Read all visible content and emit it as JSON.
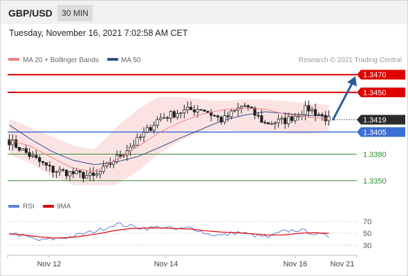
{
  "header": {
    "pair": "GBP/USD",
    "timeframe": "30 MIN",
    "datetime": "Tuesday, November 16, 2021 7:02:58 AM CET"
  },
  "legend": {
    "ma20_label": "MA 20 + Bollinger Bands",
    "ma20_color": "#f08080",
    "ma50_label": "MA 50",
    "ma50_color": "#2c4d8a",
    "copyright": "Research © 2021 Trading Central"
  },
  "rsi_legend": {
    "rsi_label": "RSI",
    "rsi_color": "#5b7fd6",
    "ma_label": "9MA",
    "ma_color": "#e00000"
  },
  "chart_data": [
    {
      "type": "candlestick",
      "x_categories": [
        "Nov 12",
        "Nov 14",
        "Nov 16",
        "Nov 21"
      ],
      "ylim": [
        1.3342,
        1.3478
      ],
      "current_price": 1.3419,
      "price_tags": [
        {
          "value": "1.3470",
          "style": "resistance"
        },
        {
          "value": "1.3450",
          "style": "resistance"
        },
        {
          "value": "1.3419",
          "style": "current"
        },
        {
          "value": "1.3405",
          "style": "pivot"
        },
        {
          "value": "1.3380",
          "style": "support"
        },
        {
          "value": "1.3350",
          "style": "support"
        }
      ],
      "levels": [
        {
          "value": 1.347,
          "kind": "resistance",
          "color": "#e00000"
        },
        {
          "value": 1.345,
          "kind": "resistance",
          "color": "#e00000"
        },
        {
          "value": 1.3405,
          "kind": "pivot",
          "color": "#3b6fd6"
        },
        {
          "value": 1.338,
          "kind": "support",
          "color": "#2e8b2e"
        },
        {
          "value": 1.335,
          "kind": "support",
          "color": "#2e8b2e"
        }
      ],
      "forecast_arrow": {
        "from": 1.3419,
        "to": 1.347,
        "color": "#2c5aa0"
      },
      "ma20_anchors": [
        1.3396,
        1.3389,
        1.3376,
        1.3364,
        1.336,
        1.3373,
        1.3388,
        1.3404,
        1.3416,
        1.3425,
        1.343,
        1.3432,
        1.3431,
        1.3425,
        1.3422,
        1.342
      ],
      "ma50_anchors": [
        1.3413,
        1.3397,
        1.3383,
        1.3373,
        1.3368,
        1.3371,
        1.3377,
        1.3387,
        1.3398,
        1.3408,
        1.3418,
        1.3424,
        1.3428,
        1.3426,
        1.3424,
        1.3423
      ],
      "bb_upper_anchors": [
        1.342,
        1.341,
        1.34,
        1.339,
        1.3385,
        1.341,
        1.343,
        1.3445,
        1.3445,
        1.3442,
        1.344,
        1.3442,
        1.3442,
        1.344,
        1.3438,
        1.3435
      ],
      "bb_lower_anchors": [
        1.338,
        1.337,
        1.3355,
        1.3345,
        1.3345,
        1.3345,
        1.336,
        1.338,
        1.3395,
        1.3405,
        1.3408,
        1.3405,
        1.3405,
        1.3403,
        1.3403,
        1.3405
      ],
      "close_anchors": [
        1.3395,
        1.3378,
        1.3362,
        1.3358,
        1.3354,
        1.3375,
        1.3395,
        1.342,
        1.3428,
        1.3432,
        1.3418,
        1.3436,
        1.3415,
        1.3418,
        1.3432,
        1.3419
      ]
    },
    {
      "type": "line",
      "name": "RSI",
      "yticks": [
        70,
        50,
        30
      ],
      "ylim": [
        20,
        78
      ],
      "rsi_anchors": [
        52,
        45,
        38,
        41,
        44,
        50,
        56,
        66,
        62,
        58,
        61,
        56,
        60,
        49,
        46,
        52,
        47,
        43,
        53,
        56,
        50,
        44
      ],
      "ma_anchors": [
        49,
        47,
        44,
        42,
        43,
        46,
        50,
        55,
        58,
        59,
        59,
        58,
        57,
        54,
        52,
        51,
        49,
        47,
        47,
        50,
        51,
        50
      ]
    }
  ]
}
